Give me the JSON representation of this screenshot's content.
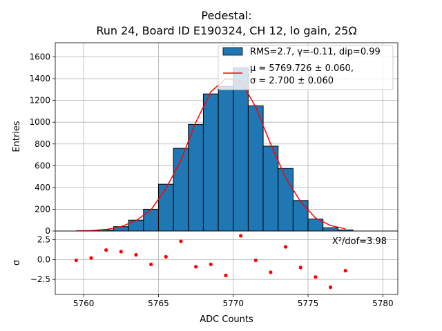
{
  "chart_data": [
    {
      "type": "bar",
      "title": "Pedestal:",
      "subtitle": "Run 24, Board ID E190324, CH 12, lo gain, 25Ω",
      "xlabel": "",
      "ylabel": "Entries",
      "xlim": [
        5758.1,
        5781.0
      ],
      "ylim": [
        0,
        1730
      ],
      "yticks": [
        "0",
        "200",
        "400",
        "600",
        "800",
        "1000",
        "1200",
        "1400",
        "1600"
      ],
      "grid": true,
      "legend_position": "top-right",
      "histogram": {
        "name": "RMS=2.7, γ=-0.11, dip=0.99",
        "color": "#1f77b4",
        "bin_width": 1,
        "bin_lefts": [
          5759,
          5760,
          5761,
          5762,
          5763,
          5764,
          5765,
          5766,
          5767,
          5768,
          5769,
          5770,
          5771,
          5772,
          5773,
          5774,
          5775,
          5776,
          5777
        ],
        "counts": [
          0,
          3,
          10,
          40,
          100,
          200,
          430,
          760,
          980,
          1260,
          1330,
          1500,
          1150,
          780,
          575,
          280,
          110,
          30,
          10
        ]
      },
      "fit": {
        "name_line1": "μ = 5769.726 ± 0.060,",
        "name_line2": "σ = 2.700 ± 0.060",
        "color": "#ff0000",
        "x": [
          5759.5,
          5760.5,
          5761.5,
          5762.5,
          5763.5,
          5764.5,
          5765.5,
          5766.5,
          5767.5,
          5768.5,
          5769.5,
          5770.5,
          5771.5,
          5772.5,
          5773.5,
          5774.5,
          5775.5,
          5776.5,
          5777.5
        ],
        "y": [
          1,
          4,
          14,
          40,
          96,
          195,
          390,
          650,
          1000,
          1280,
          1400,
          1380,
          1140,
          800,
          490,
          270,
          120,
          50,
          20
        ]
      }
    },
    {
      "type": "scatter",
      "xlabel": "ADC Counts",
      "ylabel": "σ",
      "xlim": [
        5758.1,
        5781.0
      ],
      "ylim": [
        -4.4,
        3.6
      ],
      "xticks": [
        "5760",
        "5765",
        "5770",
        "5775",
        "5780"
      ],
      "yticks": [
        "−2.5",
        "0.0",
        "2.5"
      ],
      "grid": true,
      "annotation": "X²/dof=3.98",
      "color": "#ff0000",
      "x": [
        5759.5,
        5760.5,
        5761.5,
        5762.5,
        5763.5,
        5764.5,
        5765.5,
        5766.5,
        5767.5,
        5768.5,
        5769.5,
        5770.5,
        5771.5,
        5772.5,
        5773.5,
        5774.5,
        5775.5,
        5776.5,
        5777.5
      ],
      "y": [
        -0.1,
        0.2,
        1.2,
        1.0,
        0.6,
        -0.6,
        0.35,
        2.3,
        -0.9,
        -0.6,
        -2.0,
        3.0,
        -0.1,
        -1.6,
        1.6,
        -1.0,
        -2.2,
        -3.5,
        -1.4
      ]
    }
  ]
}
